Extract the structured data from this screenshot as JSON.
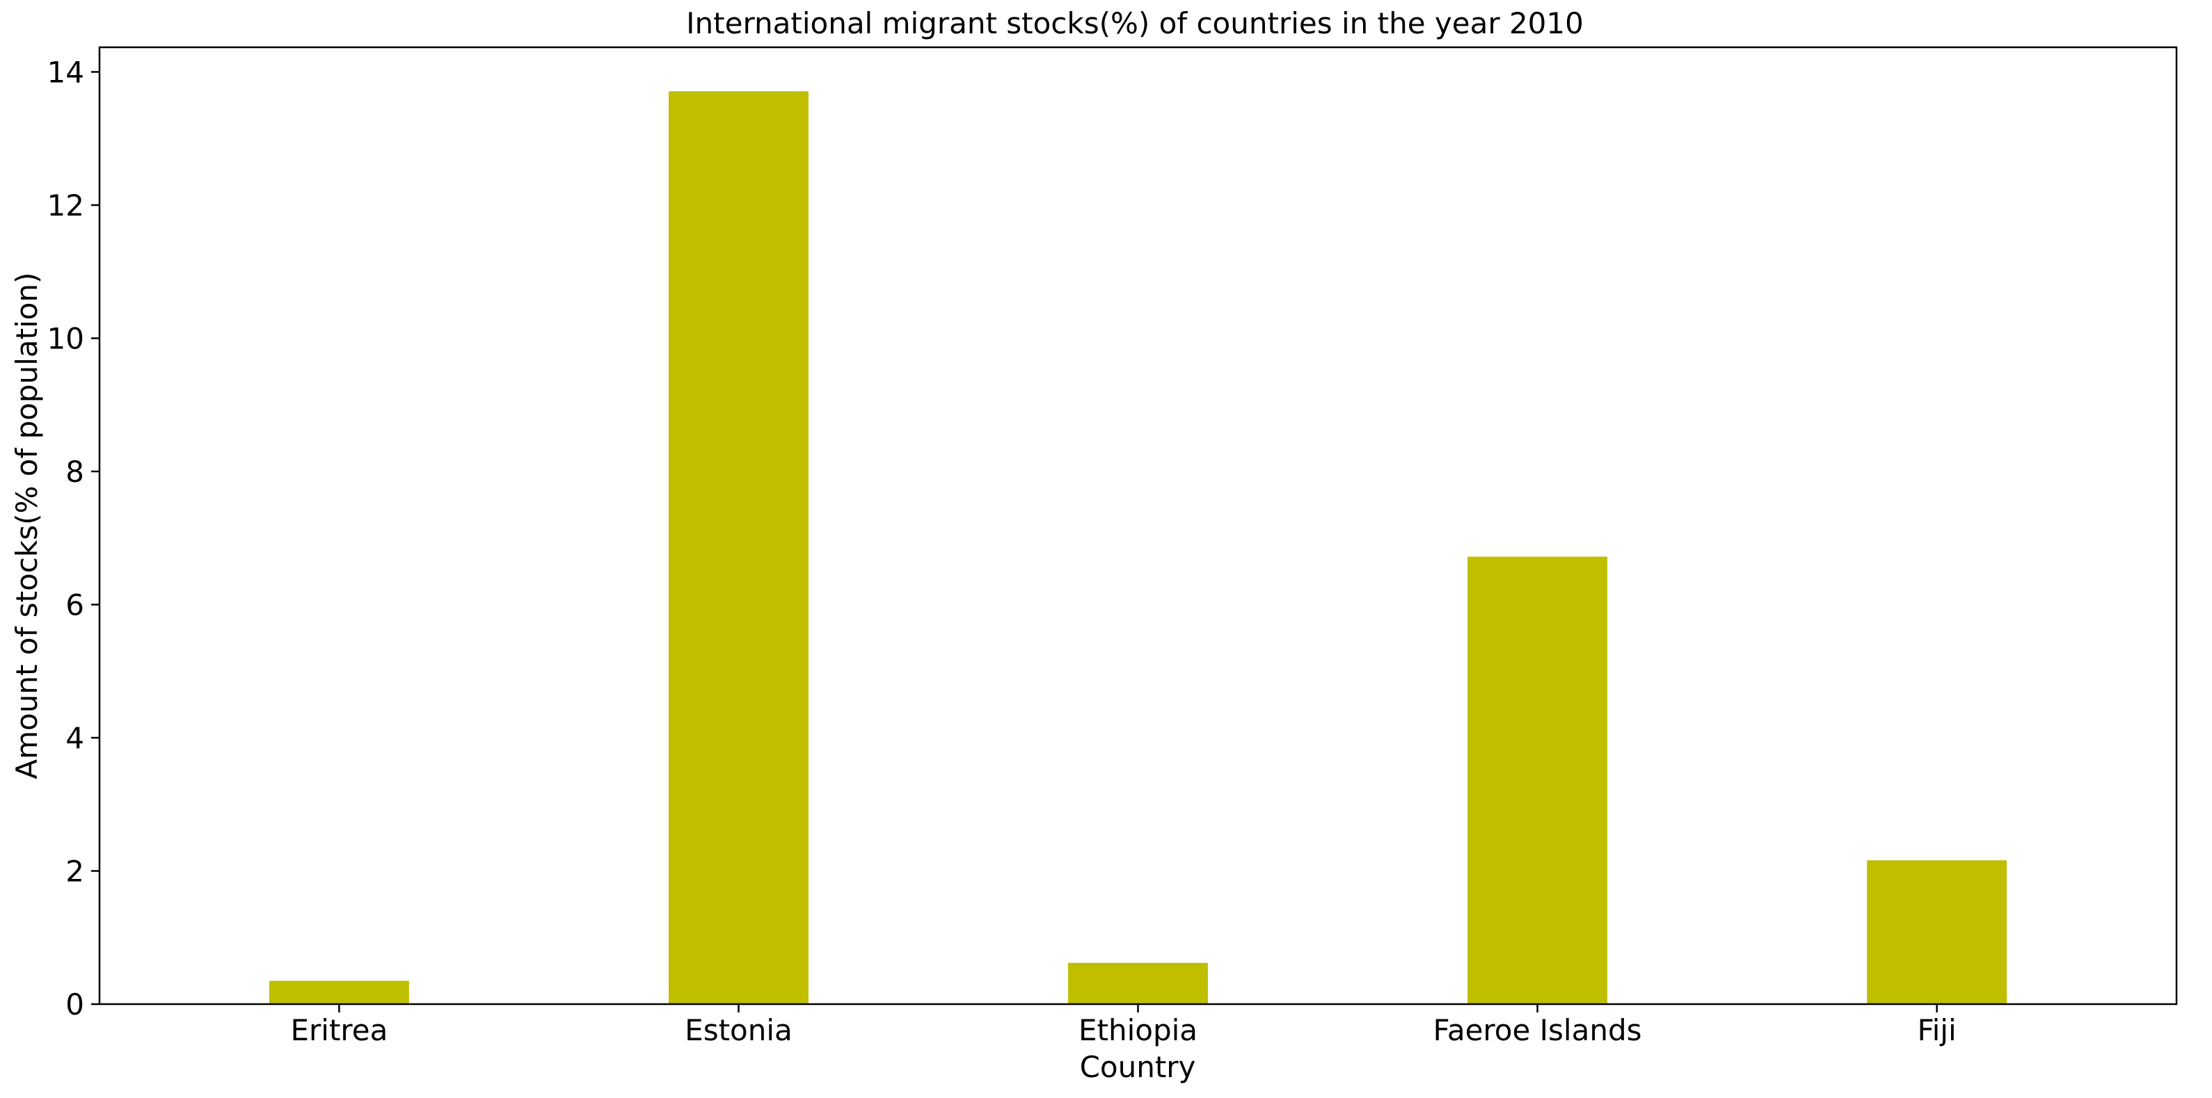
{
  "chart_data": {
    "type": "bar",
    "title": "International migrant stocks(%) of countries in the year 2010",
    "xlabel": "Country",
    "ylabel": "Amount of stocks(% of population)",
    "categories": [
      "Eritrea",
      "Estonia",
      "Ethiopia",
      "Faeroe Islands",
      "Fiji"
    ],
    "values": [
      0.35,
      13.71,
      0.62,
      6.72,
      2.16
    ],
    "ylim": [
      0,
      14.37
    ],
    "yticks": [
      0,
      2,
      4,
      6,
      8,
      10,
      12,
      14
    ],
    "bar_color": "#bfbf00",
    "grid": false,
    "legend": "none"
  }
}
